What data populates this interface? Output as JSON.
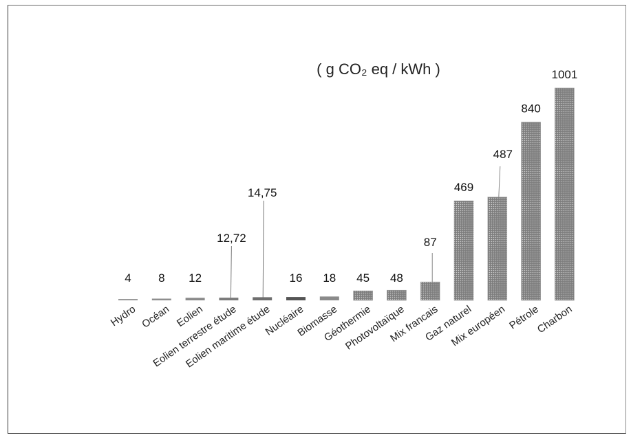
{
  "chart_data": {
    "type": "bar",
    "title": "( g CO₂ eq / kWh )",
    "categories": [
      "Hydro",
      "Océan",
      "Eolien",
      "Eolien terrestre étude",
      "Eolien maritime étude",
      "Nucléaire",
      "Biomasse",
      "Géothermie",
      "Photovoltaïque",
      "Mix francais",
      "Gaz naturel",
      "Mix européen",
      "Pétrole",
      "Charbon"
    ],
    "values": [
      4,
      8,
      12,
      12.72,
      14.75,
      16,
      18,
      45,
      48,
      87,
      469,
      487,
      840,
      1001
    ],
    "value_labels": [
      "4",
      "8",
      "12",
      "12,72",
      "14,75",
      "16",
      "18",
      "45",
      "48",
      "87",
      "469",
      "487",
      "840",
      "1001"
    ],
    "ylim": [
      0,
      1001
    ],
    "grid": false,
    "legend": "none"
  }
}
